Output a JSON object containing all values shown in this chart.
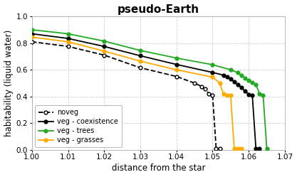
{
  "title": "pseudo-Earth",
  "xlabel": "distance from the star",
  "ylabel": "habitability (liquid water)",
  "xlim": [
    1.0,
    1.07
  ],
  "ylim": [
    0.0,
    1.0
  ],
  "xticks": [
    1.0,
    1.01,
    1.02,
    1.03,
    1.04,
    1.05,
    1.06,
    1.07
  ],
  "yticks": [
    0.0,
    0.2,
    0.4,
    0.6,
    0.8,
    1.0
  ],
  "background_color": "#ffffff",
  "grid_color": "#d0d0d0",
  "series": [
    {
      "label": "noveg",
      "color": "#000000",
      "linestyle": "--",
      "marker": "o",
      "markerfacecolor": "white",
      "markersize": 3.5,
      "linewidth": 1.3,
      "x": [
        1.0,
        1.01,
        1.02,
        1.03,
        1.04,
        1.045,
        1.047,
        1.048,
        1.049,
        1.05,
        1.051,
        1.052
      ],
      "y": [
        0.81,
        0.775,
        0.71,
        0.615,
        0.55,
        0.5,
        0.475,
        0.455,
        0.42,
        0.41,
        0.01,
        0.01
      ]
    },
    {
      "label": "veg - coexistence",
      "color": "#000000",
      "linestyle": "-",
      "marker": "o",
      "markerfacecolor": "#000000",
      "markersize": 3.5,
      "linewidth": 1.3,
      "x": [
        1.0,
        1.01,
        1.02,
        1.03,
        1.04,
        1.05,
        1.053,
        1.054,
        1.055,
        1.056,
        1.057,
        1.058,
        1.059,
        1.06,
        1.061,
        1.062,
        1.063
      ],
      "y": [
        0.87,
        0.835,
        0.775,
        0.705,
        0.64,
        0.58,
        0.56,
        0.545,
        0.53,
        0.51,
        0.49,
        0.465,
        0.44,
        0.415,
        0.41,
        0.01,
        0.01
      ]
    },
    {
      "label": "veg - trees",
      "color": "#22aa22",
      "linestyle": "-",
      "marker": "o",
      "markerfacecolor": "#22aa22",
      "markersize": 3.5,
      "linewidth": 1.3,
      "x": [
        1.0,
        1.01,
        1.02,
        1.03,
        1.04,
        1.05,
        1.055,
        1.057,
        1.058,
        1.059,
        1.06,
        1.061,
        1.062,
        1.063,
        1.064,
        1.065
      ],
      "y": [
        0.9,
        0.87,
        0.815,
        0.745,
        0.688,
        0.638,
        0.6,
        0.578,
        0.558,
        0.538,
        0.52,
        0.505,
        0.49,
        0.418,
        0.41,
        0.01
      ]
    },
    {
      "label": "veg - grasses",
      "color": "#ffaa00",
      "linestyle": "-",
      "marker": "o",
      "markerfacecolor": "#ffaa00",
      "markersize": 3.5,
      "linewidth": 1.3,
      "x": [
        1.0,
        1.01,
        1.02,
        1.03,
        1.04,
        1.05,
        1.052,
        1.053,
        1.054,
        1.055,
        1.056,
        1.057,
        1.058
      ],
      "y": [
        0.845,
        0.81,
        0.74,
        0.665,
        0.6,
        0.545,
        0.5,
        0.42,
        0.41,
        0.41,
        0.01,
        0.01,
        0.01
      ]
    }
  ],
  "legend_loc": "lower left",
  "legend_fontsize": 7.0,
  "title_fontsize": 11,
  "label_fontsize": 8.5,
  "tick_fontsize": 7.5
}
